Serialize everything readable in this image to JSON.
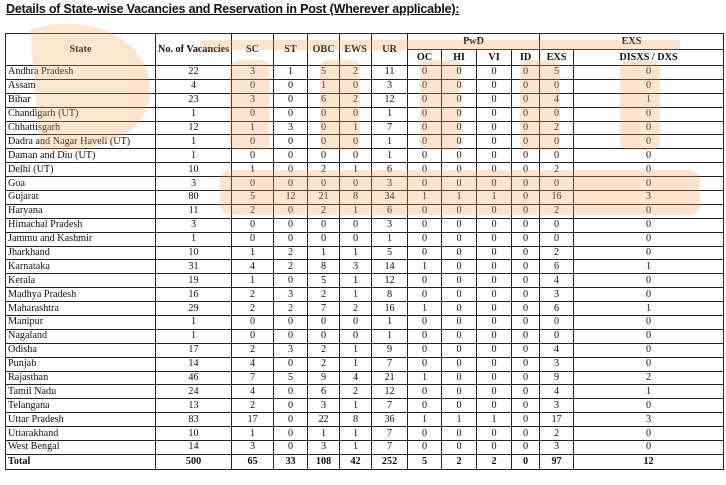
{
  "title": "Details of State-wise Vacancies and Reservation in Post (Wherever applicable):",
  "watermark_color": "#f0a050",
  "headers": {
    "state": "State",
    "vacancies": "No. of Vacancies",
    "sc": "SC",
    "st": "ST",
    "obc": "OBC",
    "ews": "EWS",
    "ur": "UR",
    "pwd": "PwD",
    "oc": "OC",
    "hi": "HI",
    "vi": "VI",
    "id": "ID",
    "exs_group": "EXS",
    "exs": "EXS",
    "disxs": "DISXS / DXS"
  },
  "rows": [
    [
      "Andhra Pradesh",
      "22",
      "3",
      "1",
      "5",
      "2",
      "11",
      "0",
      "0",
      "0",
      "0",
      "5",
      "0"
    ],
    [
      "Assam",
      "4",
      "0",
      "0",
      "1",
      "0",
      "3",
      "0",
      "0",
      "0",
      "0",
      "0",
      "0"
    ],
    [
      "Bihar",
      "23",
      "3",
      "0",
      "6",
      "2",
      "12",
      "0",
      "0",
      "0",
      "0",
      "4",
      "1"
    ],
    [
      "Chandigarh (UT)",
      "1",
      "0",
      "0",
      "0",
      "0",
      "1",
      "0",
      "0",
      "0",
      "0",
      "0",
      "0"
    ],
    [
      "Chhattisgarh",
      "12",
      "1",
      "3",
      "0",
      "1",
      "7",
      "0",
      "0",
      "0",
      "0",
      "2",
      "0"
    ],
    [
      "Dadra and Nagar Haveli (UT)",
      "1",
      "0",
      "0",
      "0",
      "0",
      "1",
      "0",
      "0",
      "0",
      "0",
      "0",
      "0"
    ],
    [
      "Daman and Diu (UT)",
      "1",
      "0",
      "0",
      "0",
      "0",
      "1",
      "0",
      "0",
      "0",
      "0",
      "0",
      "0"
    ],
    [
      "Delhi (UT)",
      "10",
      "1",
      "0",
      "2",
      "1",
      "6",
      "0",
      "0",
      "0",
      "0",
      "2",
      "0"
    ],
    [
      "Goa",
      "3",
      "0",
      "0",
      "0",
      "0",
      "3",
      "0",
      "0",
      "0",
      "0",
      "0",
      "0"
    ],
    [
      "Gujarat",
      "80",
      "5",
      "12",
      "21",
      "8",
      "34",
      "1",
      "1",
      "1",
      "0",
      "16",
      "3"
    ],
    [
      "Haryana",
      "11",
      "2",
      "0",
      "2",
      "1",
      "6",
      "0",
      "0",
      "0",
      "0",
      "2",
      "0"
    ],
    [
      "Himachal Pradesh",
      "3",
      "0",
      "0",
      "0",
      "0",
      "3",
      "0",
      "0",
      "0",
      "0",
      "0",
      "0"
    ],
    [
      "Jammu and Kashmir",
      "1",
      "0",
      "0",
      "0",
      "0",
      "1",
      "0",
      "0",
      "0",
      "0",
      "0",
      "0"
    ],
    [
      "Jharkhand",
      "10",
      "1",
      "2",
      "1",
      "1",
      "5",
      "0",
      "0",
      "0",
      "0",
      "2",
      "0"
    ],
    [
      "Karnataka",
      "31",
      "4",
      "2",
      "8",
      "3",
      "14",
      "1",
      "0",
      "0",
      "0",
      "6",
      "1"
    ],
    [
      "Kerala",
      "19",
      "1",
      "0",
      "5",
      "1",
      "12",
      "0",
      "0",
      "0",
      "0",
      "4",
      "0"
    ],
    [
      "Madhya Pradesh",
      "16",
      "2",
      "3",
      "2",
      "1",
      "8",
      "0",
      "0",
      "0",
      "0",
      "3",
      "0"
    ],
    [
      "Maharashtra",
      "29",
      "2",
      "2",
      "7",
      "2",
      "16",
      "1",
      "0",
      "0",
      "0",
      "6",
      "1"
    ],
    [
      "Manipur",
      "1",
      "0",
      "0",
      "0",
      "0",
      "1",
      "0",
      "0",
      "0",
      "0",
      "0",
      "0"
    ],
    [
      "Nagaland",
      "1",
      "0",
      "0",
      "0",
      "0",
      "1",
      "0",
      "0",
      "0",
      "0",
      "0",
      "0"
    ],
    [
      "Odisha",
      "17",
      "2",
      "3",
      "2",
      "1",
      "9",
      "0",
      "0",
      "0",
      "0",
      "4",
      "0"
    ],
    [
      "Punjab",
      "14",
      "4",
      "0",
      "2",
      "1",
      "7",
      "0",
      "0",
      "0",
      "0",
      "3",
      "0"
    ],
    [
      "Rajasthan",
      "46",
      "7",
      "5",
      "9",
      "4",
      "21",
      "1",
      "0",
      "0",
      "0",
      "9",
      "2"
    ],
    [
      "Tamil Nadu",
      "24",
      "4",
      "0",
      "6",
      "2",
      "12",
      "0",
      "0",
      "0",
      "0",
      "4",
      "1"
    ],
    [
      "Telangana",
      "13",
      "2",
      "0",
      "3",
      "1",
      "7",
      "0",
      "0",
      "0",
      "0",
      "3",
      "0"
    ],
    [
      "Uttar Pradesh",
      "83",
      "17",
      "0",
      "22",
      "8",
      "36",
      "1",
      "1",
      "1",
      "0",
      "17",
      "3"
    ],
    [
      "Uttarakhand",
      "10",
      "1",
      "0",
      "1",
      "1",
      "7",
      "0",
      "0",
      "0",
      "0",
      "2",
      "0"
    ],
    [
      "West Bengal",
      "14",
      "3",
      "0",
      "3",
      "1",
      "7",
      "0",
      "0",
      "0",
      "0",
      "3",
      "0"
    ]
  ],
  "total": [
    "Total",
    "500",
    "65",
    "33",
    "108",
    "42",
    "252",
    "5",
    "2",
    "2",
    "0",
    "97",
    "12"
  ]
}
